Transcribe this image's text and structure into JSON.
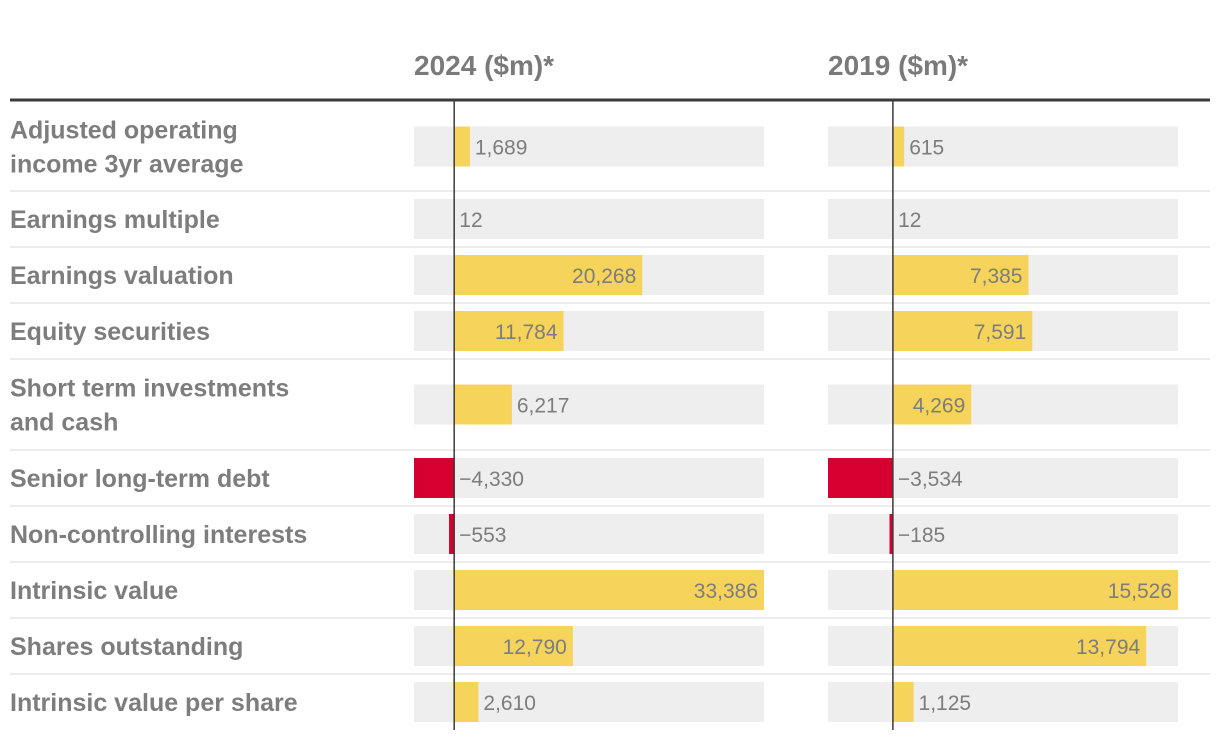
{
  "chart_data": {
    "type": "bar",
    "orientation": "horizontal",
    "unit_note": "($m)*",
    "categories": [
      "Adjusted operating income 3yr average",
      "Earnings multiple",
      "Earnings valuation",
      "Equity securities",
      "Short term investments and cash",
      "Senior long-term debt",
      "Non-controlling interests",
      "Intrinsic value",
      "Shares outstanding",
      "Intrinsic value per share"
    ],
    "category_lines": [
      [
        "Adjusted operating",
        "income 3yr average"
      ],
      [
        "Earnings multiple"
      ],
      [
        "Earnings valuation"
      ],
      [
        "Equity securities"
      ],
      [
        "Short term investments",
        "and cash"
      ],
      [
        "Senior long-term debt"
      ],
      [
        "Non-controlling interests"
      ],
      [
        "Intrinsic value"
      ],
      [
        "Shares outstanding"
      ],
      [
        "Intrinsic value per share"
      ]
    ],
    "series": [
      {
        "name": "2024 ($m)*",
        "values": [
          1689,
          12,
          20268,
          11784,
          6217,
          -4330,
          -553,
          33386,
          12790,
          2610
        ],
        "labels": [
          "1,689",
          "12",
          "20,268",
          "11,784",
          "6,217",
          "−4,330",
          "−553",
          "33,386",
          "12,790",
          "2,610"
        ],
        "xlim": [
          -4330,
          33386
        ]
      },
      {
        "name": "2019 ($m)*",
        "values": [
          615,
          12,
          7385,
          7591,
          4269,
          -3534,
          -185,
          15526,
          13794,
          1125
        ],
        "labels": [
          "615",
          "12",
          "7,385",
          "7,591",
          "4,269",
          "−3,534",
          "−185",
          "15,526",
          "13,794",
          "1,125"
        ],
        "xlim": [
          -3534,
          15526
        ]
      }
    ],
    "colors": {
      "positive": "#f6d35a",
      "negative": "#d5002f",
      "track": "#eeeeee",
      "text": "#7d7d7d"
    }
  }
}
